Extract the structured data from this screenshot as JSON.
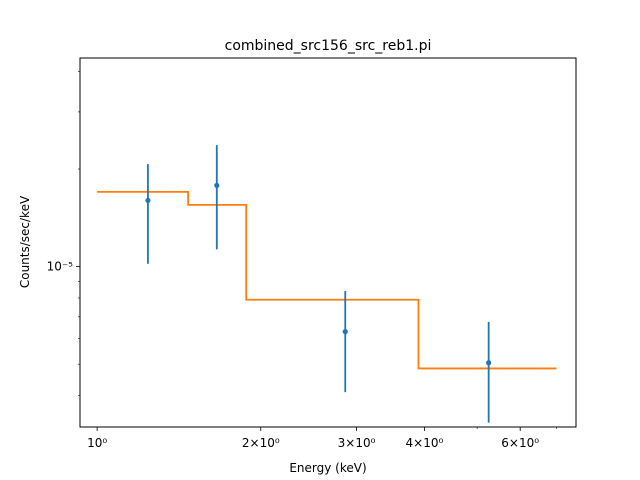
{
  "chart_data": {
    "type": "scatter",
    "title": "combined_src156_src_reb1.pi",
    "xlabel": "Energy (keV)",
    "ylabel": "Counts/sec/keV",
    "xscale": "log",
    "yscale": "log",
    "xlim": [
      0.93,
      7.6
    ],
    "ylim": [
      3.2e-06,
      4.4e-05
    ],
    "grid": false,
    "legend": "none",
    "x_major_ticks": [
      {
        "value": 1,
        "label": "10⁰"
      },
      {
        "value": 2,
        "label": "2×10⁰"
      },
      {
        "value": 3,
        "label": "3×10⁰"
      },
      {
        "value": 4,
        "label": "4×10⁰"
      },
      {
        "value": 6,
        "label": "6×10⁰"
      }
    ],
    "x_minor_ticks": [
      5,
      7
    ],
    "y_major_ticks": [
      {
        "value": 1e-05,
        "label": "10⁻⁵"
      }
    ],
    "y_minor_ticks": [
      4e-06,
      5e-06,
      6e-06,
      7e-06,
      8e-06,
      9e-06,
      2e-05,
      3e-05,
      4e-05
    ],
    "data": {
      "color": "#1f77b4",
      "points": [
        {
          "x": 1.24,
          "y": 1.6e-05,
          "ylow": 1.02e-05,
          "yhigh": 2.07e-05
        },
        {
          "x": 1.66,
          "y": 1.78e-05,
          "ylow": 1.13e-05,
          "yhigh": 2.37e-05
        },
        {
          "x": 2.86,
          "y": 6.3e-06,
          "ylow": 4.1e-06,
          "yhigh": 8.4e-06
        },
        {
          "x": 5.25,
          "y": 5.05e-06,
          "ylow": 3.3e-06,
          "yhigh": 6.75e-06
        }
      ]
    },
    "model": {
      "color": "#ff7f0e",
      "steps": [
        {
          "x0": 1.0,
          "x1": 1.47,
          "y": 1.7e-05
        },
        {
          "x0": 1.47,
          "x1": 1.88,
          "y": 1.55e-05
        },
        {
          "x0": 1.88,
          "x1": 3.9,
          "y": 7.9e-06
        },
        {
          "x0": 3.9,
          "x1": 7.0,
          "y": 4.85e-06
        }
      ]
    }
  }
}
